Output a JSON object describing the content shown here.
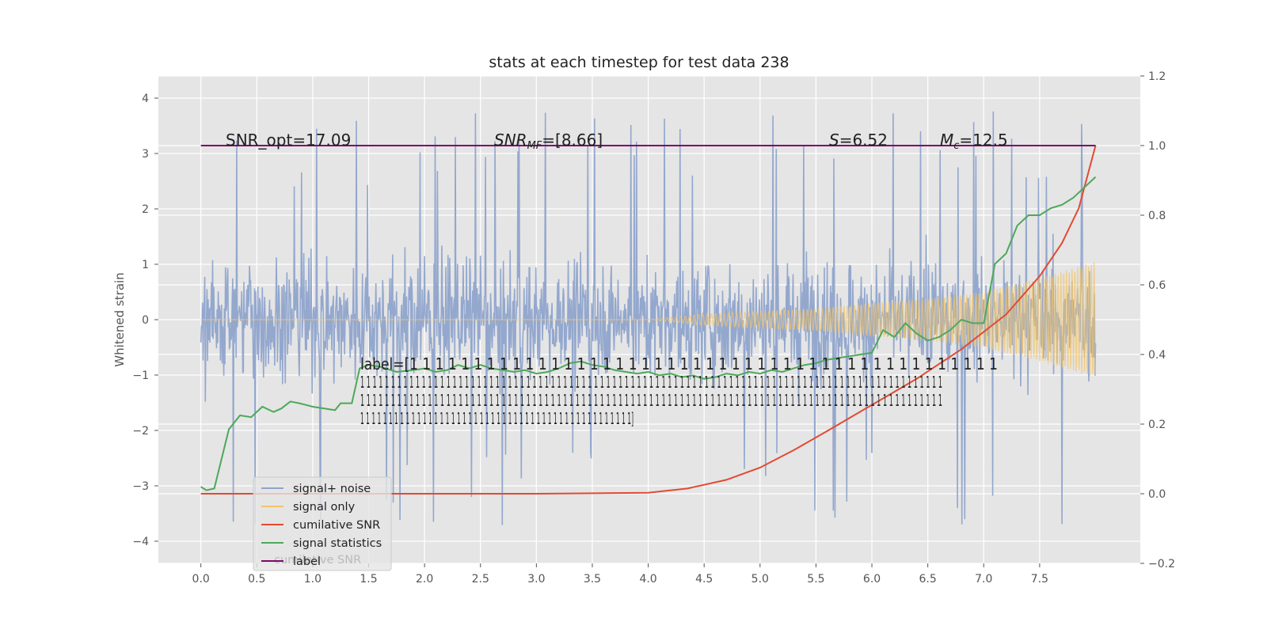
{
  "chart_data": {
    "type": "line",
    "title": "stats at each timestep for test data 238",
    "ylabel": "Whitened strain",
    "y2label": "",
    "xlim": [
      -0.38,
      8.4
    ],
    "ylim": [
      -4.4,
      4.4
    ],
    "y2lim": [
      -0.2,
      1.2
    ],
    "x_ticks": [
      "0.0",
      "0.5",
      "1.0",
      "1.5",
      "2.0",
      "2.5",
      "3.0",
      "3.5",
      "4.0",
      "4.5",
      "5.0",
      "5.5",
      "6.0",
      "6.5",
      "7.0",
      "7.5"
    ],
    "y_ticks": [
      "4",
      "3",
      "2",
      "1",
      "0",
      "−1",
      "−2",
      "−3",
      "−4"
    ],
    "y2_ticks": [
      "1.2",
      "1.0",
      "0.8",
      "0.6",
      "0.4",
      "0.2",
      "0.0",
      "−0.2"
    ],
    "grid": true,
    "legend_position": "bottom-left",
    "annotations": {
      "snr_opt": "SNR_opt=17.09",
      "snr_mf_sym": "SNR",
      "snr_mf_sub": "MF",
      "snr_mf_rest": "=[8.66]",
      "s_sym": "S",
      "s_rest": "=6.52",
      "mc_sym": "M",
      "mc_sub": "c",
      "mc_rest": "=12.5",
      "label_lines": [
        "label=[1 1 1 1 1 1 1 1 1 1 1 1 1 1 1 1 1 1 1 1 1 1 1 1 1 1 1 1 1 1 1 1 1 1 1 1 1 1 1 1 1 1 1 1 1 1",
        " 1 1 1 1 1 1 1 1 1 1 1 1 1 1 1 1 1 1 1 1 1 1 1 1 1 1 1 1 1 1 1 1 1 1 1 1 1 1 1 1 1 1 1 1 1 1 1 1 1 1 1 1 1 1 1 1 1 1 1 1 1 1 1 1 1 1 1 1 1 1 1 1 1 1 1 1 1 1 1 1 1 1 1 1 1 1 1 1 1 1 1 1 1 1 1",
        " 1 1 1 1 1 1 1 1 1 1 1 1 1 1 1 1 1 1 1 1 1 1 1 1 1 1 1 1 1 1 1 1 1 1 1 1 1 1 1 1 1 1 1 1 1 1 1 1 1 1 1 1 1 1 1 1 1 1 1 1 1 1 1 1 1 1 1 1 1 1 1 1 1 1 1 1 1 1 1 1 1 1 1 1 1 1 1 1 1 1 1 1 1 1 1",
        " 1 1 1 1 1 1 1 1 1 1 1 1 1 1 1 1 1 1 1 1 1 1 1 1 1 1 1 1 1 1 1 1 1 1 1 1 1 1 1 1 1 1 1 1 1 1 1 1]"
      ]
    },
    "legend": [
      {
        "label": "signal+ noise",
        "color": "#8fa4cc"
      },
      {
        "label": "signal only",
        "color": "#f2c46a"
      },
      {
        "label": "cumilative SNR",
        "color": "#e24a33"
      },
      {
        "label": "signal statistics",
        "color": "#4ea85a"
      },
      {
        "label": "label",
        "color": "#7b0a6a"
      }
    ],
    "legend_hidden_text": "cumilative SNR",
    "series": [
      {
        "name": "signal+ noise",
        "axis": "left",
        "style": "noise band",
        "x_range": [
          0.0,
          8.0
        ],
        "envelope_lower": -2.0,
        "envelope_upper": 2.0,
        "peak_min": -4.05,
        "peak_max": 3.95
      },
      {
        "name": "signal only",
        "axis": "left",
        "style": "chirp",
        "x": [
          0.0,
          4.0,
          4.5,
          5.0,
          5.5,
          6.0,
          6.5,
          7.0,
          7.5,
          8.0
        ],
        "amplitude": [
          0.0,
          0.0,
          0.1,
          0.15,
          0.2,
          0.3,
          0.38,
          0.5,
          0.75,
          1.05
        ]
      },
      {
        "name": "cumilative SNR",
        "axis": "right",
        "x": [
          0.0,
          1.0,
          2.0,
          3.0,
          4.0,
          4.35,
          4.7,
          5.0,
          5.3,
          5.6,
          6.0,
          6.4,
          6.8,
          7.2,
          7.5,
          7.7,
          7.85,
          8.0
        ],
        "y": [
          0.0,
          0.0,
          0.0,
          0.0,
          0.003,
          0.015,
          0.04,
          0.075,
          0.125,
          0.18,
          0.255,
          0.33,
          0.415,
          0.515,
          0.625,
          0.72,
          0.82,
          1.0
        ]
      },
      {
        "name": "signal statistics",
        "axis": "right",
        "x": [
          0.0,
          0.05,
          0.12,
          0.25,
          0.35,
          0.45,
          0.55,
          0.65,
          0.72,
          0.8,
          0.88,
          1.0,
          1.2,
          1.25,
          1.35,
          1.42,
          1.5,
          1.6,
          1.75,
          1.9,
          2.0,
          2.1,
          2.2,
          2.3,
          2.4,
          2.5,
          2.6,
          2.7,
          2.8,
          2.9,
          3.0,
          3.1,
          3.2,
          3.3,
          3.4,
          3.5,
          3.6,
          3.7,
          3.8,
          3.9,
          4.0,
          4.1,
          4.2,
          4.3,
          4.4,
          4.5,
          4.6,
          4.7,
          4.8,
          4.9,
          5.0,
          5.1,
          5.2,
          5.3,
          5.4,
          5.5,
          5.6,
          5.7,
          5.8,
          5.9,
          6.0,
          6.1,
          6.2,
          6.3,
          6.4,
          6.5,
          6.6,
          6.7,
          6.8,
          6.9,
          7.0,
          7.1,
          7.2,
          7.3,
          7.4,
          7.5,
          7.6,
          7.7,
          7.8,
          7.9,
          8.0
        ],
        "y": [
          0.02,
          0.01,
          0.015,
          0.185,
          0.225,
          0.22,
          0.25,
          0.235,
          0.245,
          0.265,
          0.26,
          0.25,
          0.24,
          0.26,
          0.26,
          0.36,
          0.37,
          0.365,
          0.35,
          0.355,
          0.36,
          0.35,
          0.355,
          0.37,
          0.36,
          0.37,
          0.36,
          0.355,
          0.35,
          0.355,
          0.345,
          0.35,
          0.36,
          0.375,
          0.38,
          0.37,
          0.365,
          0.355,
          0.35,
          0.345,
          0.35,
          0.34,
          0.345,
          0.335,
          0.34,
          0.33,
          0.335,
          0.345,
          0.34,
          0.35,
          0.345,
          0.355,
          0.35,
          0.36,
          0.37,
          0.375,
          0.385,
          0.39,
          0.395,
          0.4,
          0.405,
          0.47,
          0.45,
          0.49,
          0.46,
          0.44,
          0.45,
          0.47,
          0.5,
          0.49,
          0.49,
          0.66,
          0.69,
          0.77,
          0.8,
          0.8,
          0.82,
          0.83,
          0.85,
          0.88,
          0.91
        ]
      },
      {
        "name": "label",
        "axis": "right",
        "x": [
          0.0,
          8.0
        ],
        "y": [
          1.0,
          1.0
        ]
      }
    ]
  }
}
